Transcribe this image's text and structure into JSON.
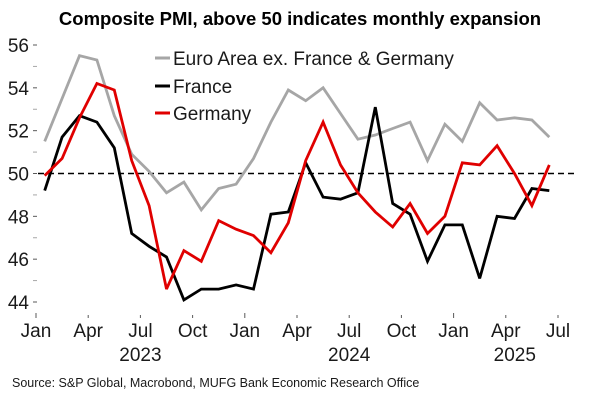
{
  "chart_data": {
    "type": "line",
    "title": "Composite PMI, above 50 indicates monthly expansion",
    "xlabel": "",
    "ylabel": "",
    "ylim": [
      44,
      56
    ],
    "y_ticks": [
      44,
      46,
      48,
      50,
      52,
      54,
      56
    ],
    "y_minor_ticks": [
      45,
      47,
      49,
      51,
      53,
      55
    ],
    "x_start": "2023-01",
    "x_end": "2025-07",
    "x_tick_labels": [
      {
        "label": "Jan",
        "month_index": 0
      },
      {
        "label": "Apr",
        "month_index": 3
      },
      {
        "label": "Jul",
        "month_index": 6
      },
      {
        "label": "Oct",
        "month_index": 9
      },
      {
        "label": "Jan",
        "month_index": 12
      },
      {
        "label": "Apr",
        "month_index": 15
      },
      {
        "label": "Jul",
        "month_index": 18
      },
      {
        "label": "Oct",
        "month_index": 21
      },
      {
        "label": "Jan",
        "month_index": 24
      },
      {
        "label": "Apr",
        "month_index": 27
      },
      {
        "label": "Jul",
        "month_index": 30
      }
    ],
    "year_labels": [
      {
        "label": "2023",
        "month_index": 6
      },
      {
        "label": "2024",
        "month_index": 18
      },
      {
        "label": "2025",
        "month_index": 28
      }
    ],
    "reference_line": {
      "value": 50,
      "style": "dashed",
      "color": "#000000"
    },
    "x": [
      "2023-01",
      "2023-02",
      "2023-03",
      "2023-04",
      "2023-05",
      "2023-06",
      "2023-07",
      "2023-08",
      "2023-09",
      "2023-10",
      "2023-11",
      "2023-12",
      "2024-01",
      "2024-02",
      "2024-03",
      "2024-04",
      "2024-05",
      "2024-06",
      "2024-07",
      "2024-08",
      "2024-09",
      "2024-10",
      "2024-11",
      "2024-12",
      "2025-01",
      "2025-02",
      "2025-03",
      "2025-04",
      "2025-05",
      "2025-06"
    ],
    "series": [
      {
        "name": "Euro Area ex. France & Germany",
        "color": "#a6a6a6",
        "values": [
          51.5,
          53.5,
          55.5,
          55.3,
          52.7,
          50.9,
          50.1,
          49.1,
          49.6,
          48.3,
          49.3,
          49.5,
          50.7,
          52.4,
          53.9,
          53.4,
          54.0,
          52.8,
          51.6,
          51.8,
          52.1,
          52.4,
          50.6,
          52.3,
          51.5,
          53.3,
          52.5,
          52.6,
          52.5,
          51.7
        ]
      },
      {
        "name": "France",
        "color": "#000000",
        "values": [
          49.2,
          51.7,
          52.7,
          52.4,
          51.2,
          47.2,
          46.6,
          46.1,
          44.1,
          44.6,
          44.6,
          44.8,
          44.6,
          48.1,
          48.2,
          50.5,
          48.9,
          48.8,
          49.1,
          53.1,
          48.6,
          48.1,
          45.9,
          47.6,
          47.6,
          45.1,
          48.0,
          47.9,
          49.3,
          49.2
        ]
      },
      {
        "name": "Germany",
        "color": "#e00000",
        "values": [
          49.9,
          50.7,
          52.6,
          54.2,
          53.9,
          50.6,
          48.5,
          44.6,
          46.4,
          45.9,
          47.8,
          47.4,
          47.1,
          46.3,
          47.7,
          50.6,
          52.4,
          50.4,
          49.1,
          48.2,
          47.5,
          48.6,
          47.2,
          48.0,
          50.5,
          50.4,
          51.3,
          50.0,
          48.5,
          50.4
        ]
      }
    ],
    "legend": {
      "position": "top-right",
      "entries": [
        "Euro Area ex. France & Germany",
        "France",
        "Germany"
      ]
    },
    "source": "Source: S&P Global, Macrobond, MUFG Bank Economic Research Office",
    "grid": false
  }
}
